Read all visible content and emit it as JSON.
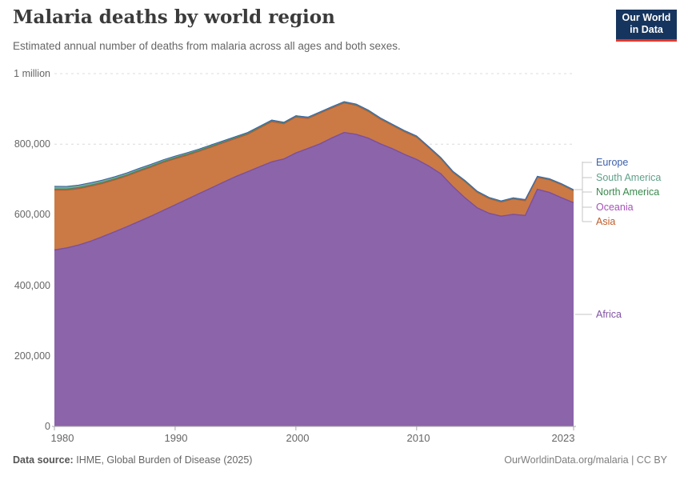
{
  "header": {
    "title": "Malaria deaths by world region",
    "subtitle": "Estimated annual number of deaths from malaria across all ages and both sexes.",
    "logo": {
      "line1": "Our World",
      "line2": "in Data",
      "bg_color": "#16355e",
      "accent_color": "#dc3a2f"
    }
  },
  "legend": {
    "items": [
      {
        "label": "Europe",
        "color": "#3d60ab"
      },
      {
        "label": "South America",
        "color": "#5fa088"
      },
      {
        "label": "North America",
        "color": "#3a8a4d"
      },
      {
        "label": "Oceania",
        "color": "#a652b8"
      },
      {
        "label": "Asia",
        "color": "#bf5b28"
      },
      {
        "label": "Africa",
        "color": "#8152a4"
      }
    ]
  },
  "chart_data": {
    "type": "area",
    "stacked": true,
    "title": "Malaria deaths by world region",
    "unit": "deaths",
    "ylim": [
      0,
      1000000
    ],
    "grid": "dashed-horizontal",
    "legend_position": "right-labels",
    "years": [
      1980,
      1981,
      1982,
      1983,
      1984,
      1985,
      1986,
      1987,
      1988,
      1989,
      1990,
      1991,
      1992,
      1993,
      1994,
      1995,
      1996,
      1997,
      1998,
      1999,
      2000,
      2001,
      2002,
      2003,
      2004,
      2005,
      2006,
      2007,
      2008,
      2009,
      2010,
      2011,
      2012,
      2013,
      2014,
      2015,
      2016,
      2017,
      2018,
      2019,
      2020,
      2021,
      2022,
      2023
    ],
    "yticks": [
      {
        "value": 1000000,
        "label": "1 million"
      },
      {
        "value": 800000,
        "label": "800,000"
      },
      {
        "value": 600000,
        "label": "600,000"
      },
      {
        "value": 400000,
        "label": "400,000"
      },
      {
        "value": 200000,
        "label": "200,000"
      },
      {
        "value": 0,
        "label": "0"
      }
    ],
    "xticks": [
      {
        "year": 1980,
        "label": "1980"
      },
      {
        "year": 1990,
        "label": "1990"
      },
      {
        "year": 2000,
        "label": "2000"
      },
      {
        "year": 2010,
        "label": "2010"
      },
      {
        "year": 2023,
        "label": "2023"
      }
    ],
    "series": [
      {
        "name": "Africa",
        "color": "#8c64aa",
        "line_color": "#7a4fa0",
        "values": [
          500000,
          506000,
          514000,
          525000,
          538000,
          552000,
          566000,
          581000,
          596000,
          612000,
          628000,
          644000,
          660000,
          676000,
          692000,
          708000,
          722000,
          736000,
          750000,
          758000,
          775000,
          788000,
          801000,
          818000,
          833000,
          828000,
          817000,
          801000,
          787000,
          771000,
          757000,
          738000,
          716000,
          680000,
          648000,
          620000,
          604000,
          596000,
          601000,
          598000,
          672000,
          663000,
          648000,
          634000
        ]
      },
      {
        "name": "Asia",
        "color": "#cb7a45",
        "line_color": "#b55e24",
        "values": [
          170000,
          164000,
          160000,
          156000,
          151000,
          147000,
          144000,
          142000,
          139000,
          136000,
          131000,
          125000,
          120000,
          116000,
          112000,
          108000,
          106000,
          110000,
          114000,
          100000,
          102000,
          85000,
          87000,
          85000,
          84000,
          82000,
          76000,
          70000,
          66000,
          64000,
          63000,
          52000,
          43000,
          40000,
          46000,
          44000,
          42000,
          40000,
          44000,
          42000,
          34000,
          36000,
          37000,
          34000
        ]
      },
      {
        "name": "Oceania",
        "color": "#b57ec0",
        "line_color": "#a353b4",
        "values": [
          2200,
          2200,
          2100,
          2100,
          2100,
          2100,
          2000,
          2000,
          2000,
          2000,
          1900,
          1900,
          1900,
          1900,
          1800,
          1800,
          1800,
          1800,
          1700,
          1700,
          1700,
          1700,
          1600,
          1600,
          1600,
          1600,
          1500,
          1500,
          1500,
          1500,
          1400,
          1400,
          1400,
          1400,
          1300,
          1300,
          1300,
          1300,
          1200,
          1200,
          1200,
          1200,
          1100,
          1100
        ]
      },
      {
        "name": "North America",
        "color": "#5d9e66",
        "line_color": "#3e8e54",
        "values": [
          900,
          900,
          900,
          900,
          900,
          800,
          800,
          800,
          800,
          800,
          800,
          800,
          700,
          700,
          700,
          700,
          700,
          700,
          700,
          700,
          600,
          600,
          600,
          600,
          600,
          600,
          600,
          600,
          600,
          600,
          500,
          500,
          500,
          500,
          500,
          500,
          500,
          500,
          500,
          500,
          500,
          500,
          500,
          500
        ]
      },
      {
        "name": "South America",
        "color": "#79ab96",
        "line_color": "#579f83",
        "values": [
          7000,
          6700,
          6400,
          6100,
          5800,
          5500,
          5300,
          5000,
          4700,
          4400,
          4100,
          3800,
          3500,
          3200,
          2900,
          2700,
          2400,
          2100,
          1800,
          1500,
          1200,
          1200,
          1200,
          1200,
          1200,
          1200,
          1200,
          1200,
          1200,
          1200,
          1200,
          1200,
          1200,
          1200,
          1200,
          1200,
          1200,
          1200,
          1200,
          1200,
          1200,
          1200,
          1200,
          1200
        ]
      },
      {
        "name": "Europe",
        "color": "#6682c4",
        "line_color": "#3d60ab",
        "values": [
          500,
          500,
          500,
          500,
          500,
          400,
          400,
          400,
          400,
          400,
          400,
          400,
          400,
          300,
          300,
          300,
          300,
          300,
          300,
          300,
          300,
          300,
          300,
          200,
          200,
          200,
          200,
          200,
          200,
          200,
          200,
          200,
          200,
          200,
          200,
          200,
          200,
          200,
          200,
          200,
          200,
          200,
          200,
          200
        ]
      }
    ]
  },
  "footer": {
    "source_label": "Data source:",
    "source_text": "IHME, Global Burden of Disease (2025)",
    "credit": "OurWorldinData.org/malaria | CC BY"
  }
}
